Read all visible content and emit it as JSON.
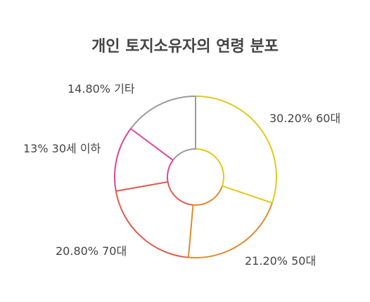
{
  "chart_data": {
    "type": "pie",
    "title": "개인 토지소유자의 연령 분포",
    "slices": [
      {
        "label": "30.20% 60대",
        "value": 30.2,
        "color": "#e2c81c"
      },
      {
        "label": "21.20% 50대",
        "value": 21.2,
        "color": "#e08a2a"
      },
      {
        "label": "20.80% 70대",
        "value": 20.8,
        "color": "#e05a4a"
      },
      {
        "label": "13% 30세 이하",
        "value": 13.0,
        "color": "#d9459b"
      },
      {
        "label": "14.80% 기타",
        "value": 14.8,
        "color": "#9a9a9a"
      }
    ],
    "style": "donut-outline",
    "legend": "none"
  }
}
